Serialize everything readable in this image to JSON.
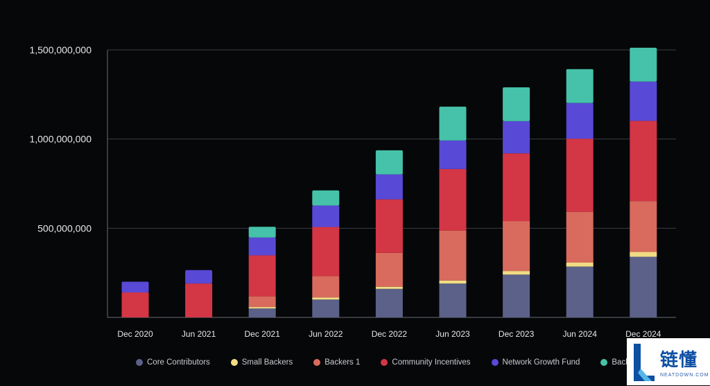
{
  "chart_data": {
    "type": "bar",
    "stacked": true,
    "title": "",
    "xlabel": "",
    "ylabel": "",
    "ylim": [
      0,
      1500000000
    ],
    "yticks": [
      500000000,
      1000000000,
      1500000000
    ],
    "ytick_labels": [
      "500,000,000",
      "1,000,000,000",
      "1,500,000,000"
    ],
    "grid": true,
    "legend_position": "bottom",
    "categories": [
      "Dec 2020",
      "Jun 2021",
      "Dec 2021",
      "Jun 2022",
      "Dec 2022",
      "Jun 2023",
      "Dec 2023",
      "Jun 2024",
      "Dec 2024"
    ],
    "series": [
      {
        "name": "Core Contributors",
        "color": "#5b6188",
        "values": [
          0,
          0,
          50000000,
          100000000,
          160000000,
          190000000,
          240000000,
          285000000,
          340000000
        ]
      },
      {
        "name": "Small Backers",
        "color": "#f1dc84",
        "values": [
          0,
          0,
          8000000,
          12000000,
          12000000,
          17000000,
          20000000,
          22000000,
          27000000
        ]
      },
      {
        "name": "Backers 1",
        "color": "#d86b5d",
        "values": [
          0,
          0,
          60000000,
          120000000,
          190000000,
          280000000,
          280000000,
          285000000,
          285000000
        ]
      },
      {
        "name": "Community Incentives",
        "color": "#d33645",
        "values": [
          140000000,
          190000000,
          230000000,
          275000000,
          300000000,
          345000000,
          380000000,
          410000000,
          450000000
        ]
      },
      {
        "name": "Network Growth Fund",
        "color": "#5849d6",
        "values": [
          60000000,
          75000000,
          100000000,
          120000000,
          140000000,
          160000000,
          180000000,
          200000000,
          220000000
        ]
      },
      {
        "name": "Backe",
        "color": "#45c2a9",
        "values": [
          0,
          0,
          60000000,
          85000000,
          135000000,
          190000000,
          190000000,
          190000000,
          190000000
        ]
      }
    ]
  },
  "watermark": {
    "text_cn": "链懂",
    "text_en": "NEATDOWN.COM",
    "logo_icon": "l-letter-logo-icon"
  }
}
